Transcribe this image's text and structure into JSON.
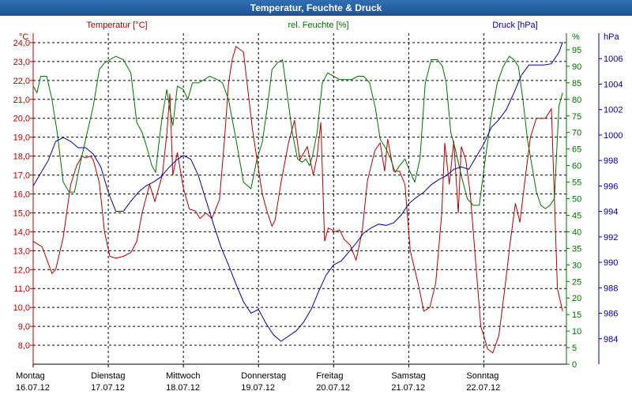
{
  "window": {
    "title": "Temperatur, Feuchte & Druck"
  },
  "colors": {
    "temperature": "#b40000",
    "humidity": "#007000",
    "pressure": "#0000a0",
    "grid": "#000000",
    "title_bg": "#2a66ab"
  },
  "chart_data": {
    "type": "line",
    "title": "Temperatur, Feuchte & Druck",
    "x_unit": "days since 16.07.12 00:00",
    "days": [
      {
        "weekday": "Montag",
        "date": "16.07.12"
      },
      {
        "weekday": "Dienstag",
        "date": "17.07.12"
      },
      {
        "weekday": "Mittwoch",
        "date": "18.07.12"
      },
      {
        "weekday": "Donnerstag",
        "date": "19.07.12"
      },
      {
        "weekday": "Freitag",
        "date": "20.07.12"
      },
      {
        "weekday": "Samstag",
        "date": "21.07.12"
      },
      {
        "weekday": "Sonntag",
        "date": "22.07.12"
      }
    ],
    "xlim": [
      0,
      7.1
    ],
    "grid": true,
    "axes": {
      "temperature": {
        "label": "Temperatur [°C]",
        "unit": "°C",
        "range": [
          7,
          24.5
        ],
        "ticks": [
          8,
          9,
          10,
          11,
          12,
          13,
          14,
          15,
          16,
          17,
          18,
          19,
          20,
          21,
          22,
          23,
          24
        ],
        "tick_labels": [
          "8,0",
          "9,0",
          "10,0",
          "11,0",
          "12,0",
          "13,0",
          "14,0",
          "15,0",
          "16,0",
          "17,0",
          "18,0",
          "19,0",
          "20,0",
          "21,0",
          "22,0",
          "23,0",
          "24,0"
        ]
      },
      "humidity": {
        "label": "rel. Feuchte [%]",
        "unit": "%",
        "range": [
          0,
          100
        ],
        "ticks": [
          0,
          5,
          10,
          15,
          20,
          25,
          30,
          35,
          40,
          45,
          50,
          55,
          60,
          65,
          70,
          75,
          80,
          85,
          90,
          95
        ]
      },
      "pressure": {
        "label": "Druck [hPa]",
        "unit": "hPa",
        "range": [
          982,
          1008
        ],
        "ticks": [
          984,
          986,
          988,
          990,
          992,
          994,
          996,
          998,
          1000,
          1002,
          1004,
          1006
        ]
      }
    },
    "series": [
      {
        "name": "Temperatur [°C]",
        "axis": "temperature",
        "x": [
          0,
          0.12,
          0.25,
          0.3,
          0.4,
          0.5,
          0.58,
          0.65,
          0.7,
          0.76,
          0.8,
          0.88,
          0.95,
          1.02,
          1.1,
          1.2,
          1.3,
          1.38,
          1.45,
          1.55,
          1.62,
          1.72,
          1.78,
          1.82,
          1.86,
          1.92,
          2.0,
          2.08,
          2.16,
          2.22,
          2.3,
          2.38,
          2.48,
          2.55,
          2.6,
          2.65,
          2.7,
          2.8,
          2.92,
          3.05,
          3.12,
          3.18,
          3.22,
          3.3,
          3.4,
          3.48,
          3.55,
          3.65,
          3.73,
          3.78,
          3.83,
          3.88,
          3.93,
          3.98,
          4.02,
          4.08,
          4.14,
          4.22,
          4.3,
          4.38,
          4.45,
          4.55,
          4.62,
          4.68,
          4.72,
          4.8,
          4.88,
          4.95,
          5.02,
          5.08,
          5.14,
          5.2,
          5.28,
          5.36,
          5.44,
          5.48,
          5.54,
          5.6,
          5.66,
          5.7,
          5.76,
          5.82,
          5.9,
          5.96,
          6.0,
          6.05,
          6.12,
          6.2,
          6.28,
          6.35,
          6.42,
          6.48,
          6.55,
          6.62,
          6.7,
          6.76,
          6.82,
          6.9,
          6.98,
          7.05
        ],
        "y": [
          13.5,
          13.2,
          11.8,
          12.0,
          13.7,
          16.5,
          17.5,
          18.0,
          17.9,
          18.0,
          17.8,
          16.6,
          14.0,
          12.7,
          12.6,
          12.7,
          12.9,
          13.5,
          15.0,
          16.5,
          15.6,
          17.0,
          19.2,
          21.3,
          17.0,
          18.2,
          16.3,
          15.2,
          15.1,
          14.7,
          15.0,
          14.7,
          15.7,
          19.0,
          21.8,
          23.1,
          23.8,
          23.5,
          19.4,
          16.0,
          15.0,
          14.3,
          14.6,
          16.6,
          18.7,
          19.9,
          17.8,
          18.5,
          17.0,
          18.0,
          19.8,
          13.5,
          14.2,
          14.1,
          14.0,
          14.1,
          13.6,
          13.3,
          12.5,
          14.0,
          16.7,
          18.3,
          18.7,
          17.2,
          18.9,
          17.2,
          17.2,
          16.5,
          13.0,
          12.0,
          11.0,
          9.8,
          10.0,
          11.3,
          15.0,
          18.7,
          16.5,
          18.8,
          15.0,
          18.5,
          17.8,
          16.0,
          12.0,
          9.0,
          8.5,
          7.8,
          7.6,
          8.5,
          11.0,
          13.4,
          15.5,
          14.5,
          16.8,
          19.0,
          20.0,
          20.0,
          20.0,
          20.5,
          11.0,
          9.8
        ]
      },
      {
        "name": "rel. Feuchte [%]",
        "axis": "humidity",
        "x": [
          0,
          0.05,
          0.1,
          0.18,
          0.25,
          0.32,
          0.4,
          0.48,
          0.55,
          0.62,
          0.7,
          0.8,
          0.88,
          0.95,
          1.02,
          1.1,
          1.2,
          1.3,
          1.38,
          1.45,
          1.52,
          1.58,
          1.63,
          1.68,
          1.72,
          1.78,
          1.82,
          1.86,
          1.92,
          2.0,
          2.06,
          2.12,
          2.2,
          2.28,
          2.35,
          2.45,
          2.52,
          2.6,
          2.7,
          2.8,
          2.9,
          2.98,
          3.05,
          3.12,
          3.18,
          3.25,
          3.32,
          3.38,
          3.45,
          3.52,
          3.58,
          3.63,
          3.68,
          3.72,
          3.78,
          3.85,
          3.92,
          4.0,
          4.08,
          4.16,
          4.24,
          4.32,
          4.4,
          4.48,
          4.56,
          4.62,
          4.7,
          4.76,
          4.82,
          4.88,
          4.95,
          5.02,
          5.08,
          5.15,
          5.22,
          5.3,
          5.38,
          5.45,
          5.5,
          5.56,
          5.62,
          5.7,
          5.78,
          5.86,
          5.94,
          6.02,
          6.1,
          6.18,
          6.26,
          6.34,
          6.4,
          6.46,
          6.52,
          6.58,
          6.64,
          6.7,
          6.76,
          6.82,
          6.88,
          6.94,
          7.0,
          7.05
        ],
        "y": [
          84,
          82,
          87,
          87,
          80,
          70,
          55,
          52,
          52,
          60,
          68,
          78,
          89,
          91,
          92,
          93,
          92,
          88,
          73,
          70,
          65,
          60,
          58,
          68,
          75,
          83,
          77,
          72,
          84,
          83,
          80,
          85,
          85,
          86,
          87,
          86,
          85,
          80,
          68,
          55,
          53,
          62,
          67,
          78,
          89,
          91,
          92,
          82,
          70,
          62,
          61,
          62,
          60,
          63,
          70,
          85,
          88,
          87,
          86,
          86,
          86,
          87,
          87,
          85,
          77,
          68,
          65,
          62,
          58,
          60,
          62,
          58,
          55,
          62,
          85,
          92,
          92,
          90,
          85,
          70,
          65,
          57,
          50,
          48,
          48,
          62,
          75,
          85,
          90,
          93,
          92,
          90,
          80,
          68,
          60,
          52,
          48,
          47,
          48,
          50,
          78,
          82
        ]
      },
      {
        "name": "Druck [hPa]",
        "axis": "pressure",
        "x": [
          0,
          0.1,
          0.2,
          0.3,
          0.4,
          0.5,
          0.6,
          0.7,
          0.8,
          0.9,
          1.0,
          1.1,
          1.2,
          1.3,
          1.4,
          1.5,
          1.6,
          1.7,
          1.8,
          1.9,
          2.0,
          2.1,
          2.2,
          2.3,
          2.4,
          2.5,
          2.6,
          2.7,
          2.8,
          2.9,
          3.0,
          3.1,
          3.2,
          3.3,
          3.4,
          3.5,
          3.6,
          3.7,
          3.8,
          3.9,
          4.0,
          4.1,
          4.2,
          4.3,
          4.4,
          4.5,
          4.6,
          4.7,
          4.8,
          4.9,
          5.0,
          5.1,
          5.2,
          5.3,
          5.4,
          5.5,
          5.6,
          5.7,
          5.8,
          5.9,
          6.0,
          6.1,
          6.2,
          6.3,
          6.4,
          6.5,
          6.6,
          6.7,
          6.8,
          6.9,
          7.0,
          7.05
        ],
        "y": [
          996,
          997,
          998,
          999.5,
          999.8,
          999.5,
          999,
          999,
          998.5,
          997.5,
          995.5,
          994,
          994,
          994.8,
          995.5,
          996,
          996.3,
          996.7,
          997.4,
          998,
          998.4,
          998.1,
          996.8,
          994.9,
          993,
          991.2,
          989.8,
          988.3,
          986.9,
          986,
          986.3,
          985.2,
          984.3,
          983.8,
          984.2,
          984.6,
          985.3,
          986.3,
          987.7,
          989,
          989.8,
          990.1,
          990.8,
          991.5,
          992.3,
          992.7,
          993,
          992.9,
          993.1,
          993.7,
          994.6,
          995.1,
          995.5,
          996.1,
          996.5,
          996.8,
          997.3,
          997.5,
          997.3,
          998.3,
          999.3,
          1000.6,
          1001.2,
          1002,
          1003.3,
          1004.7,
          1005.5,
          1005.5,
          1005.5,
          1005.6,
          1006.5,
          1007.3
        ]
      }
    ]
  }
}
